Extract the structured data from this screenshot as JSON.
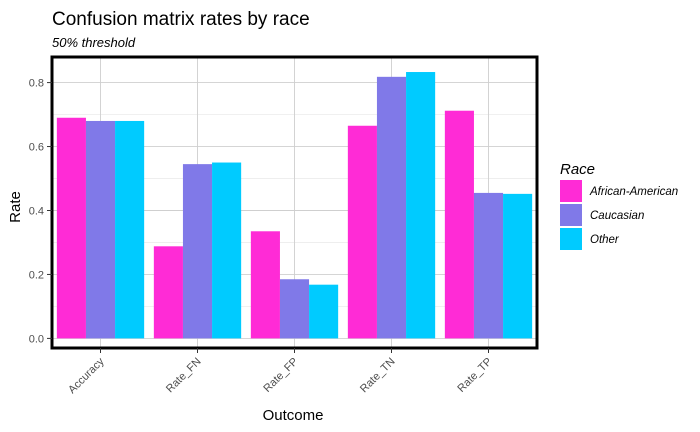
{
  "chart_data": {
    "type": "bar",
    "title": "Confusion matrix rates by race",
    "subtitle": "50% threshold",
    "xlabel": "Outcome",
    "ylabel": "Rate",
    "categories": [
      "Accuracy",
      "Rate_FN",
      "Rate_FP",
      "Rate_TN",
      "Rate_TP"
    ],
    "series": [
      {
        "name": "African-American",
        "color": "#ff2bd6",
        "values": [
          0.69,
          0.288,
          0.335,
          0.665,
          0.712
        ]
      },
      {
        "name": "Caucasian",
        "color": "#8079e8",
        "values": [
          0.68,
          0.545,
          0.185,
          0.818,
          0.455
        ]
      },
      {
        "name": "Other",
        "color": "#00cbff",
        "values": [
          0.68,
          0.55,
          0.168,
          0.833,
          0.452
        ]
      }
    ],
    "ylim": [
      -0.03,
      0.88
    ],
    "yticks": [
      0.0,
      0.2,
      0.4,
      0.6,
      0.8
    ],
    "ytick_labels": [
      "0.0",
      "0.2",
      "0.4",
      "0.6",
      "0.8"
    ],
    "grid": true,
    "legend": {
      "title": "Race",
      "placement": "right"
    }
  }
}
